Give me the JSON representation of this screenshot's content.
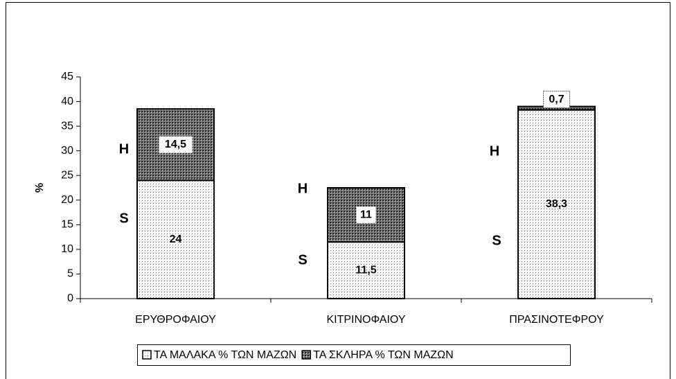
{
  "chart_data": {
    "type": "stacked_bar",
    "ylabel": "%",
    "categories": [
      "ΕΡΥΘΡΟΦΑΙΟΥ",
      "ΚΙΤΡΙΝΟΦΑΙΟΥ",
      "ΠΡΑΣΙΝΟΤΕΦΡΟΥ"
    ],
    "series": [
      {
        "name": "ΤΑ ΜΑΛΑΚΑ % ΤΩΝ ΜΑΖΩΝ",
        "color": "#ffffff",
        "values": [
          24,
          11.5,
          38.3
        ],
        "value_labels": [
          "24",
          "11,5",
          "38,3"
        ]
      },
      {
        "name": "ΤΑ ΣΚΛΗΡΑ % ΤΩΝ ΜΑΖΩΝ",
        "color": "#7a7a7a",
        "values": [
          14.5,
          11,
          0.7
        ],
        "value_labels": [
          "14,5",
          "11",
          "0,7"
        ]
      }
    ],
    "annotations": [
      "H",
      "S",
      "H",
      "S",
      "H",
      "S"
    ],
    "ylim": [
      0,
      45
    ],
    "yticks": [
      0,
      5,
      10,
      15,
      20,
      25,
      30,
      35,
      40,
      45
    ],
    "legend": "bottom"
  }
}
